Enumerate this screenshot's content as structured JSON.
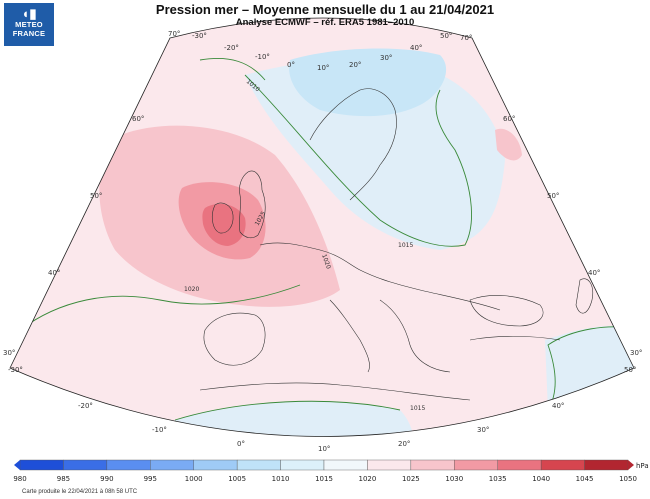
{
  "header": {
    "title": "Pression mer – Moyenne mensuelle du 1 au 21/04/2021",
    "subtitle": "Analyse ECMWF – réf. ERA5 1981–2010"
  },
  "logo": {
    "icon": "meteo-france-logo-icon",
    "line1": "METEO",
    "line2": "FRANCE"
  },
  "map": {
    "graticule_labels": {
      "top": [
        "70°",
        "-30°",
        "-20°",
        "-10°",
        "0°",
        "10°",
        "20°",
        "30°",
        "40°",
        "50°",
        "70°"
      ],
      "bottom": [
        "-20°",
        "-10°",
        "0°",
        "10°",
        "20°",
        "30°",
        "40°"
      ],
      "left": [
        "60°",
        "50°",
        "40°",
        "30°",
        "-30°"
      ],
      "right": [
        "60°",
        "50°",
        "40°",
        "30°",
        "50°"
      ]
    },
    "isobar_labels": [
      "1010",
      "1015",
      "1020",
      "1025",
      "1020",
      "1015"
    ],
    "colors": {
      "outside": "#ffffff",
      "p1010_1015": "#e0eef8",
      "p1015_1020": "#fbe8ec",
      "p1020_1025": "#f7c5cc",
      "p1025_1030": "#f29aa4",
      "p1030_1035": "#e97380",
      "blue_1005_1010": "#c8e6f7",
      "isobar": "#3a8a3a",
      "coast": "#333333"
    }
  },
  "scale": {
    "unit": "hPa",
    "labels": [
      "980",
      "985",
      "990",
      "995",
      "1000",
      "1005",
      "1010",
      "1015",
      "1020",
      "1025",
      "1030",
      "1035",
      "1040",
      "1045",
      "1050"
    ],
    "colors": [
      "#1e4fd8",
      "#3a6ee6",
      "#5a8ef0",
      "#7aabf4",
      "#9fcbf6",
      "#bfe2f8",
      "#dcf0fa",
      "#f1f7fb",
      "#fbe8ec",
      "#f7c5cc",
      "#f29aa4",
      "#e97380",
      "#d6454f",
      "#b22630"
    ]
  },
  "credit": "Carte produite le 22/04/2021 à 08h 58 UTC"
}
